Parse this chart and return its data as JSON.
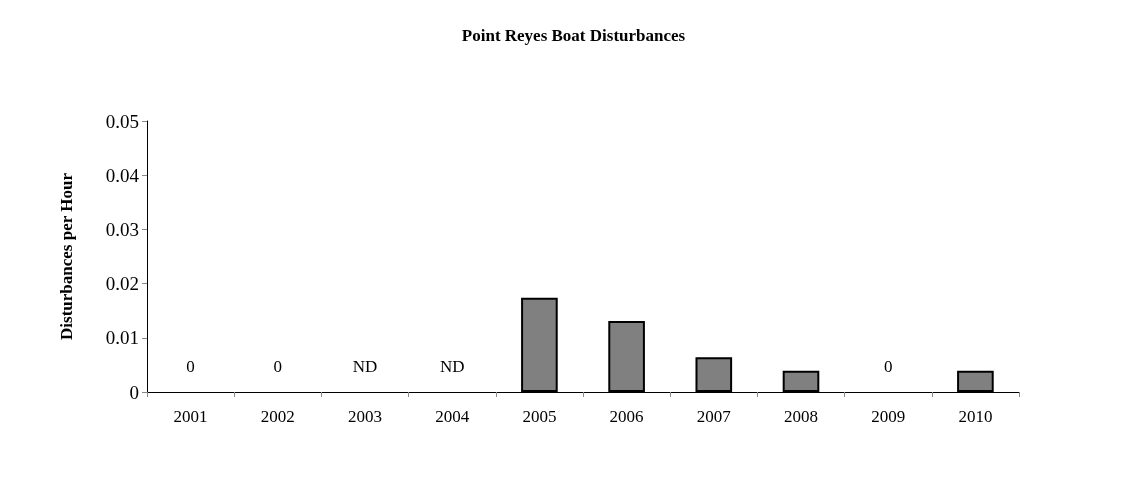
{
  "chart_data": {
    "type": "bar",
    "title": "Point Reyes Boat Disturbances",
    "ylabel": "Disturbances per Hour",
    "categories": [
      "2001",
      "2002",
      "2003",
      "2004",
      "2005",
      "2006",
      "2007",
      "2008",
      "2009",
      "2010"
    ],
    "values": [
      0,
      0,
      null,
      null,
      0.0174,
      0.0131,
      0.0064,
      0.0039,
      0,
      0.0039
    ],
    "value_labels": [
      "0",
      "0",
      "ND",
      "ND",
      null,
      null,
      null,
      null,
      "0",
      null
    ],
    "color": "#808080",
    "ylim": [
      0,
      0.05
    ],
    "yticks": [
      0,
      0.01,
      0.02,
      0.03,
      0.04,
      0.05
    ],
    "grid": false
  }
}
